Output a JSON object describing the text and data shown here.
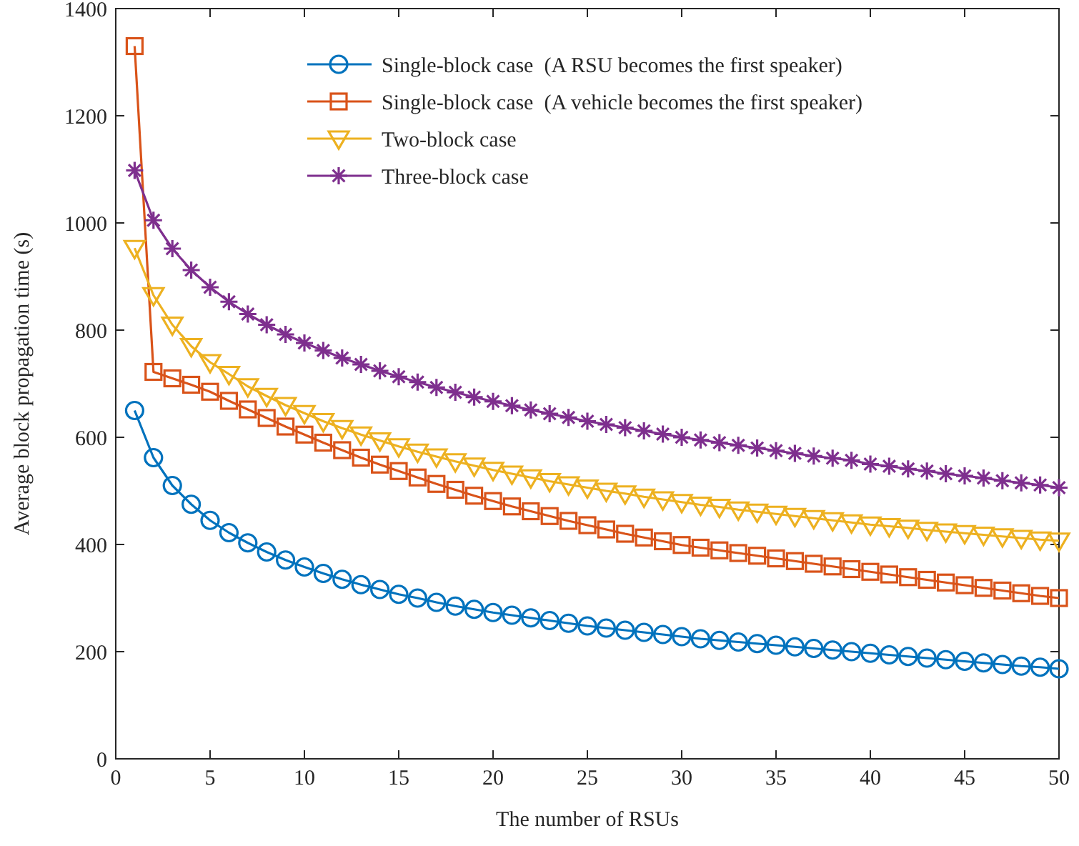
{
  "chart_data": {
    "type": "line",
    "xlabel": "The number of RSUs",
    "ylabel": "Average block propagation time (s)",
    "x": [
      1,
      2,
      3,
      4,
      5,
      6,
      7,
      8,
      9,
      10,
      11,
      12,
      13,
      14,
      15,
      16,
      17,
      18,
      19,
      20,
      21,
      22,
      23,
      24,
      25,
      26,
      27,
      28,
      29,
      30,
      31,
      32,
      33,
      34,
      35,
      36,
      37,
      38,
      39,
      40,
      41,
      42,
      43,
      44,
      45,
      46,
      47,
      48,
      49,
      50
    ],
    "xlim": [
      0,
      50
    ],
    "xticks": [
      0,
      5,
      10,
      15,
      20,
      25,
      30,
      35,
      40,
      45,
      50
    ],
    "ylim": [
      0,
      1400
    ],
    "yticks": [
      0,
      200,
      400,
      600,
      800,
      1000,
      1200,
      1400
    ],
    "grid": false,
    "legend": "top right",
    "line_style": "solid",
    "series": [
      {
        "name": "Single-block case  (A RSU becomes the first speaker)",
        "color": "#0072bd",
        "marker": "circle",
        "values": [
          650,
          562,
          510,
          475,
          445,
          422,
          403,
          386,
          371,
          358,
          346,
          335,
          325,
          316,
          307,
          300,
          292,
          285,
          279,
          273,
          268,
          263,
          258,
          253,
          248,
          244,
          240,
          236,
          232,
          228,
          224,
          221,
          218,
          215,
          212,
          209,
          206,
          203,
          200,
          197,
          194,
          191,
          188,
          185,
          182,
          179,
          176,
          173,
          171,
          168
        ]
      },
      {
        "name": "Single-block case  (A vehicle becomes the first speaker)",
        "color": "#d95319",
        "marker": "square",
        "values": [
          1330,
          722,
          710,
          698,
          685,
          668,
          652,
          636,
          620,
          605,
          590,
          576,
          562,
          549,
          537,
          525,
          513,
          502,
          491,
          481,
          471,
          462,
          453,
          444,
          436,
          428,
          420,
          413,
          406,
          399,
          394,
          389,
          384,
          379,
          374,
          369,
          364,
          359,
          354,
          349,
          344,
          339,
          334,
          329,
          324,
          319,
          314,
          309,
          304,
          300
        ]
      },
      {
        "name": "Two-block case",
        "color": "#edb120",
        "marker": "triangle",
        "values": [
          953,
          865,
          810,
          770,
          740,
          718,
          695,
          677,
          660,
          645,
          630,
          617,
          605,
          594,
          583,
          573,
          564,
          555,
          547,
          539,
          532,
          525,
          518,
          512,
          506,
          500,
          495,
          489,
          484,
          479,
          474,
          470,
          465,
          461,
          457,
          453,
          449,
          445,
          441,
          437,
          434,
          431,
          427,
          424,
          421,
          418,
          415,
          412,
          409,
          407
        ]
      },
      {
        "name": "Three-block case",
        "color": "#7e2f8e",
        "marker": "cross",
        "values": [
          1098,
          1005,
          952,
          912,
          880,
          853,
          830,
          810,
          792,
          776,
          762,
          748,
          736,
          724,
          713,
          703,
          693,
          684,
          675,
          667,
          659,
          651,
          644,
          637,
          630,
          624,
          618,
          612,
          606,
          600,
          595,
          590,
          585,
          580,
          575,
          570,
          565,
          561,
          557,
          550,
          546,
          541,
          537,
          532,
          528,
          524,
          519,
          515,
          511,
          506
        ]
      }
    ]
  }
}
